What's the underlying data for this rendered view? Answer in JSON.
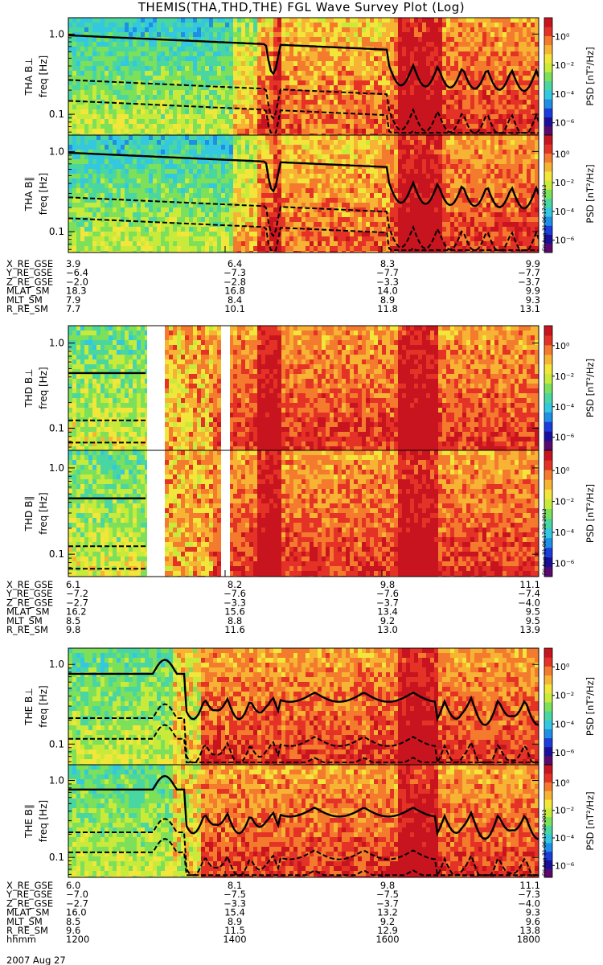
{
  "title": "THEMIS(THA,THD,THE) FGL Wave Survey Plot (Log)",
  "colors": {
    "colorbar": [
      "#ffffff",
      "#5a0a6e",
      "#1a0f9a",
      "#1c3cdc",
      "#1f8fe6",
      "#33c7e0",
      "#4ad6a0",
      "#7de05a",
      "#c8ea3a",
      "#f3e63a",
      "#f7b434",
      "#f47a2e",
      "#e53226",
      "#c8141e"
    ],
    "curve": "#000000"
  },
  "chart_data": [
    {
      "type": "heatmap",
      "ylabel": "THA B⊥",
      "yunits": "freq [Hz]",
      "yticks": [
        "1.0",
        "0.1"
      ],
      "zlabel": "PSD [nT²/Hz]",
      "zticks": [
        "10⁰",
        "10⁻²",
        "10⁻⁴",
        "10⁻⁶"
      ],
      "ylog": true
    },
    {
      "type": "heatmap",
      "ylabel": "THA B∥",
      "yunits": "freq [Hz]",
      "yticks": [
        "1.0",
        "0.1"
      ],
      "zlabel": "PSD [nT²/Hz]",
      "zticks": [
        "10⁰",
        "10⁻²",
        "10⁻⁴",
        "10⁻⁶"
      ],
      "ylog": true
    },
    {
      "type": "heatmap",
      "ylabel": "THD B⊥",
      "yunits": "freq [Hz]",
      "yticks": [
        "1.0",
        "0.1"
      ],
      "zlabel": "PSD [nT²/Hz]",
      "zticks": [
        "10⁰",
        "10⁻²",
        "10⁻⁴",
        "10⁻⁶"
      ],
      "ylog": true
    },
    {
      "type": "heatmap",
      "ylabel": "THD B∥",
      "yunits": "freq [Hz]",
      "yticks": [
        "1.0",
        "0.1"
      ],
      "zlabel": "PSD [nT²/Hz]",
      "zticks": [
        "10⁰",
        "10⁻²",
        "10⁻⁴",
        "10⁻⁶"
      ],
      "ylog": true
    },
    {
      "type": "heatmap",
      "ylabel": "THE B⊥",
      "yunits": "freq [Hz]",
      "yticks": [
        "1.0",
        "0.1"
      ],
      "zlabel": "PSD [nT²/Hz]",
      "zticks": [
        "10⁰",
        "10⁻²",
        "10⁻⁴",
        "10⁻⁶"
      ],
      "ylog": true
    },
    {
      "type": "heatmap",
      "ylabel": "THE B∥",
      "yunits": "freq [Hz]",
      "yticks": [
        "1.0",
        "0.1"
      ],
      "zlabel": "PSD [nT²/Hz]",
      "zticks": [
        "10⁰",
        "10⁻²",
        "10⁻⁴",
        "10⁻⁶"
      ],
      "ylog": true
    }
  ],
  "stamps": [
    "Fri Aug 31 06:17:27 2012",
    "Fri Aug 31 06:17:28 2012",
    "Fri Aug 31 06:17:28 2012"
  ],
  "ephemeris": [
    {
      "labels": [
        "X_RE_GSE",
        "Y_RE_GSE",
        "Z_RE_GSE",
        "MLAT_SM",
        "MLT_SM",
        "R_RE_SM"
      ],
      "columns": [
        [
          "3.9",
          "-6.4",
          "-2.0",
          "18.3",
          "7.9",
          "7.7"
        ],
        [
          "6.4",
          "-7.3",
          "-2.8",
          "16.8",
          "8.4",
          "10.1"
        ],
        [
          "8.3",
          "-7.7",
          "-3.3",
          "14.0",
          "8.9",
          "11.8"
        ],
        [
          "9.9",
          "-7.7",
          "-3.7",
          "9.9",
          "9.3",
          "13.1"
        ]
      ]
    },
    {
      "labels": [
        "X_RE_GSE",
        "Y_RE_GSE",
        "Z_RE_GSE",
        "MLAT_SM",
        "MLT_SM",
        "R_RE_SM"
      ],
      "columns": [
        [
          "6.1",
          "-7.2",
          "-2.7",
          "16.2",
          "8.5",
          "9.8"
        ],
        [
          "8.2",
          "-7.6",
          "-3.3",
          "15.6",
          "8.8",
          "11.6"
        ],
        [
          "9.8",
          "-7.6",
          "-3.7",
          "13.4",
          "9.2",
          "13.0"
        ],
        [
          "11.1",
          "-7.4",
          "-4.0",
          "9.5",
          "9.5",
          "13.9"
        ]
      ]
    },
    {
      "labels": [
        "X_RE_GSE",
        "Y_RE_GSE",
        "Z_RE_GSE",
        "MLAT_SM",
        "MLT_SM",
        "R_RE_SM",
        "hhmm"
      ],
      "columns": [
        [
          "6.0",
          "-7.0",
          "-2.7",
          "16.0",
          "8.5",
          "9.6",
          "1200"
        ],
        [
          "8.1",
          "-7.5",
          "-3.3",
          "15.4",
          "8.9",
          "11.5",
          "1400"
        ],
        [
          "9.8",
          "-7.5",
          "-3.7",
          "13.2",
          "9.2",
          "12.9",
          "1600"
        ],
        [
          "11.1",
          "-7.3",
          "-4.0",
          "9.3",
          "9.6",
          "13.8",
          "1800"
        ]
      ]
    }
  ],
  "date": "2007 Aug 27"
}
